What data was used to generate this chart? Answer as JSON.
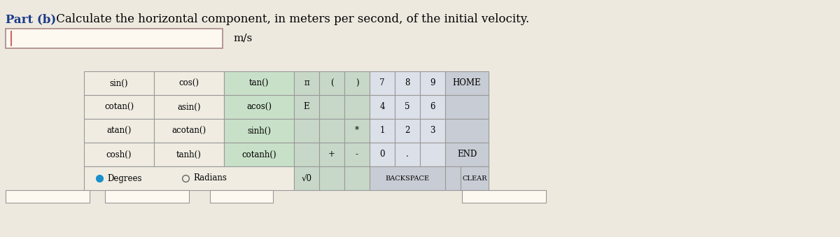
{
  "title_part": "Part (b)",
  "title_rest": " Calculate the horizontal component, in meters per second, of the initial velocity.",
  "unit_label": "m/s",
  "bg_color": "#ede9df",
  "input_box_color": "#fdf8f0",
  "rows": [
    [
      "sin()",
      "cos()",
      "tan()",
      "π",
      "(",
      ")",
      "7",
      "8",
      "9",
      "HOME"
    ],
    [
      "cotan()",
      "asin()",
      "acos()",
      "E",
      "",
      "",
      "4",
      "5",
      "6",
      ""
    ],
    [
      "atan()",
      "acotan()",
      "sinh()",
      "",
      "",
      "*",
      "1",
      "2",
      "3",
      ""
    ],
    [
      "cosh()",
      "tanh()",
      "cotanh()",
      "",
      "+",
      "-",
      "0",
      ".",
      "",
      "END"
    ]
  ],
  "col_colors": [
    "#f0ece2",
    "#f0ece2",
    "#c8e0c8",
    "#c8d8c8",
    "#c8d8c8",
    "#c8d8c8",
    "#dce0e8",
    "#dce0e8",
    "#dce0e8",
    "#c8ccd4"
  ],
  "bottom_left_color": "#f0ece2",
  "bottom_mid_color": "#c8d8c8",
  "bottom_num_color": "#dce0e8",
  "bottom_right_color": "#c8ccd4",
  "font_size_table": 8.5,
  "font_size_title": 12
}
